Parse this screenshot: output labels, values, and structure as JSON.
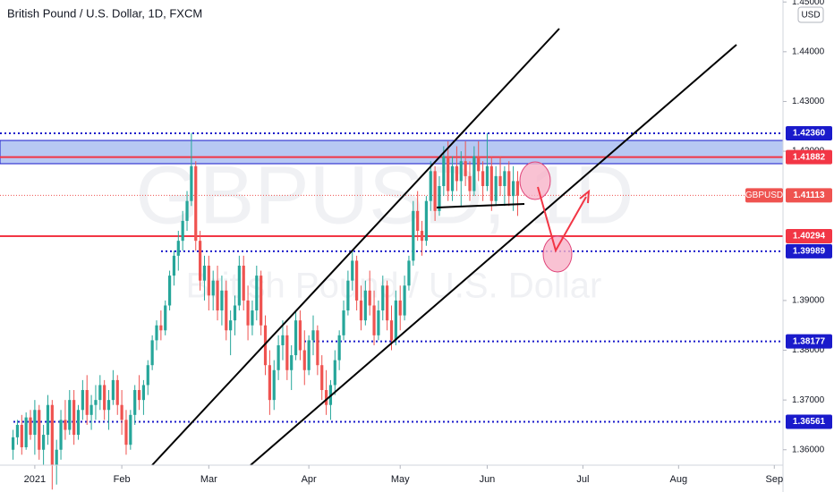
{
  "chart_data": {
    "type": "candlestick",
    "title": "British Pound / U.S. Dollar, 1D, FXCM",
    "watermark": "GBPUSD, 1D",
    "watermark_subtitle": "British Pound / U.S. Dollar",
    "currency": "USD",
    "symbol": "GBPUSD",
    "up_color": "#26a69a",
    "down_color": "#ef5350",
    "ylim": [
      1.3569,
      1.4504
    ],
    "yticks": [
      {
        "value": 1.36,
        "label": "1.36000"
      },
      {
        "value": 1.37,
        "label": "1.37000"
      },
      {
        "value": 1.38,
        "label": "1.38000"
      },
      {
        "value": 1.39,
        "label": "1.39000"
      },
      {
        "value": 1.42,
        "label": "1.42000"
      },
      {
        "value": 1.43,
        "label": "1.43000"
      },
      {
        "value": 1.44,
        "label": "1.44000"
      },
      {
        "value": 1.45,
        "label": "1.45000"
      }
    ],
    "xlim": [
      -3,
      177
    ],
    "xticks": [
      {
        "value": 5,
        "label": "2021"
      },
      {
        "value": 25,
        "label": "Feb"
      },
      {
        "value": 45,
        "label": "Mar"
      },
      {
        "value": 68,
        "label": "Apr"
      },
      {
        "value": 89,
        "label": "May"
      },
      {
        "value": 109,
        "label": "Jun"
      },
      {
        "value": 131,
        "label": "Jul"
      },
      {
        "value": 153,
        "label": "Aug"
      },
      {
        "value": 175,
        "label": "Sep"
      }
    ],
    "levels": [
      {
        "value": 1.4236,
        "label": "1.42360",
        "color": "#1a1acb",
        "style": "dotted"
      },
      {
        "value": 1.41882,
        "label": "1.41882",
        "color": "#f23645",
        "style": "solid"
      },
      {
        "value": 1.41113,
        "label": "1.41113",
        "color": "#ef5350",
        "style": "price"
      },
      {
        "value": 1.40294,
        "label": "1.40294",
        "color": "#f23645",
        "style": "solid"
      },
      {
        "value": 1.39989,
        "label": "1.39989",
        "color": "#1a1acb",
        "style": "dotted"
      },
      {
        "value": 1.38177,
        "label": "1.38177",
        "color": "#1a1acb",
        "style": "dotted"
      },
      {
        "value": 1.36561,
        "label": "1.36561",
        "color": "#1a1acb",
        "style": "dotted"
      }
    ],
    "x": [
      0,
      1,
      2,
      3,
      4,
      5,
      6,
      7,
      8,
      9,
      10,
      11,
      12,
      13,
      14,
      15,
      16,
      17,
      18,
      19,
      20,
      21,
      22,
      23,
      24,
      25,
      26,
      27,
      28,
      29,
      30,
      31,
      32,
      33,
      34,
      35,
      36,
      37,
      38,
      39,
      40,
      41,
      42,
      43,
      44,
      45,
      46,
      47,
      48,
      49,
      50,
      51,
      52,
      53,
      54,
      55,
      56,
      57,
      58,
      59,
      60,
      61,
      62,
      63,
      64,
      65,
      66,
      67,
      68,
      69,
      70,
      71,
      72,
      73,
      74,
      75,
      76,
      77,
      78,
      79,
      80,
      81,
      82,
      83,
      84,
      85,
      86,
      87,
      88,
      89,
      90,
      91,
      92,
      93,
      94,
      95,
      96,
      97,
      98,
      99,
      100,
      101,
      102,
      103,
      104,
      105,
      106,
      107,
      108,
      109,
      110,
      111,
      112,
      113,
      114,
      115,
      116
    ],
    "ohlc": [
      [
        1.36,
        1.364,
        1.358,
        1.3625
      ],
      [
        1.3625,
        1.366,
        1.361,
        1.365
      ],
      [
        1.365,
        1.367,
        1.359,
        1.3605
      ],
      [
        1.3605,
        1.3675,
        1.36,
        1.3665
      ],
      [
        1.3665,
        1.368,
        1.362,
        1.363
      ],
      [
        1.363,
        1.37,
        1.359,
        1.368
      ],
      [
        1.368,
        1.369,
        1.358,
        1.36
      ],
      [
        1.36,
        1.365,
        1.357,
        1.363
      ],
      [
        1.363,
        1.371,
        1.361,
        1.369
      ],
      [
        1.369,
        1.37,
        1.352,
        1.357
      ],
      [
        1.357,
        1.362,
        1.353,
        1.36
      ],
      [
        1.36,
        1.368,
        1.358,
        1.366
      ],
      [
        1.366,
        1.37,
        1.362,
        1.364
      ],
      [
        1.364,
        1.372,
        1.363,
        1.37
      ],
      [
        1.37,
        1.372,
        1.361,
        1.363
      ],
      [
        1.363,
        1.369,
        1.362,
        1.368
      ],
      [
        1.368,
        1.374,
        1.366,
        1.372
      ],
      [
        1.372,
        1.375,
        1.365,
        1.367
      ],
      [
        1.367,
        1.371,
        1.364,
        1.369
      ],
      [
        1.369,
        1.373,
        1.366,
        1.37
      ],
      [
        1.37,
        1.375,
        1.368,
        1.373
      ],
      [
        1.373,
        1.374,
        1.366,
        1.368
      ],
      [
        1.368,
        1.372,
        1.364,
        1.37
      ],
      [
        1.37,
        1.376,
        1.369,
        1.374
      ],
      [
        1.374,
        1.375,
        1.367,
        1.369
      ],
      [
        1.369,
        1.372,
        1.363,
        1.366
      ],
      [
        1.366,
        1.368,
        1.359,
        1.361
      ],
      [
        1.361,
        1.368,
        1.36,
        1.367
      ],
      [
        1.367,
        1.373,
        1.365,
        1.372
      ],
      [
        1.372,
        1.375,
        1.368,
        1.37
      ],
      [
        1.37,
        1.374,
        1.367,
        1.373
      ],
      [
        1.373,
        1.378,
        1.371,
        1.377
      ],
      [
        1.377,
        1.383,
        1.376,
        1.382
      ],
      [
        1.382,
        1.386,
        1.38,
        1.385
      ],
      [
        1.385,
        1.388,
        1.382,
        1.384
      ],
      [
        1.384,
        1.39,
        1.383,
        1.389
      ],
      [
        1.389,
        1.396,
        1.388,
        1.395
      ],
      [
        1.395,
        1.4,
        1.393,
        1.399
      ],
      [
        1.399,
        1.404,
        1.396,
        1.402
      ],
      [
        1.402,
        1.408,
        1.4,
        1.406
      ],
      [
        1.406,
        1.412,
        1.404,
        1.41
      ],
      [
        1.41,
        1.4237,
        1.409,
        1.417
      ],
      [
        1.417,
        1.418,
        1.4,
        1.402
      ],
      [
        1.402,
        1.404,
        1.392,
        1.394
      ],
      [
        1.394,
        1.399,
        1.39,
        1.397
      ],
      [
        1.397,
        1.399,
        1.388,
        1.391
      ],
      [
        1.391,
        1.396,
        1.388,
        1.394
      ],
      [
        1.394,
        1.397,
        1.386,
        1.388
      ],
      [
        1.388,
        1.395,
        1.385,
        1.392
      ],
      [
        1.392,
        1.394,
        1.382,
        1.384
      ],
      [
        1.384,
        1.388,
        1.379,
        1.386
      ],
      [
        1.386,
        1.391,
        1.383,
        1.389
      ],
      [
        1.389,
        1.399,
        1.388,
        1.397
      ],
      [
        1.397,
        1.399,
        1.388,
        1.39
      ],
      [
        1.39,
        1.393,
        1.382,
        1.385
      ],
      [
        1.385,
        1.39,
        1.383,
        1.388
      ],
      [
        1.388,
        1.397,
        1.386,
        1.395
      ],
      [
        1.395,
        1.396,
        1.383,
        1.385
      ],
      [
        1.385,
        1.387,
        1.375,
        1.377
      ],
      [
        1.377,
        1.38,
        1.367,
        1.37
      ],
      [
        1.37,
        1.378,
        1.368,
        1.376
      ],
      [
        1.376,
        1.383,
        1.374,
        1.381
      ],
      [
        1.381,
        1.386,
        1.378,
        1.383
      ],
      [
        1.383,
        1.385,
        1.374,
        1.376
      ],
      [
        1.376,
        1.381,
        1.372,
        1.379
      ],
      [
        1.379,
        1.388,
        1.378,
        1.386
      ],
      [
        1.386,
        1.388,
        1.378,
        1.38
      ],
      [
        1.38,
        1.384,
        1.373,
        1.376
      ],
      [
        1.376,
        1.383,
        1.375,
        1.382
      ],
      [
        1.382,
        1.387,
        1.379,
        1.384
      ],
      [
        1.384,
        1.385,
        1.375,
        1.377
      ],
      [
        1.377,
        1.379,
        1.37,
        1.372
      ],
      [
        1.372,
        1.376,
        1.367,
        1.369
      ],
      [
        1.369,
        1.374,
        1.366,
        1.373
      ],
      [
        1.373,
        1.38,
        1.371,
        1.378
      ],
      [
        1.378,
        1.384,
        1.376,
        1.383
      ],
      [
        1.383,
        1.39,
        1.382,
        1.388
      ],
      [
        1.388,
        1.396,
        1.387,
        1.394
      ],
      [
        1.394,
        1.4,
        1.392,
        1.398
      ],
      [
        1.398,
        1.399,
        1.388,
        1.39
      ],
      [
        1.39,
        1.393,
        1.384,
        1.386
      ],
      [
        1.386,
        1.394,
        1.385,
        1.392
      ],
      [
        1.392,
        1.396,
        1.387,
        1.389
      ],
      [
        1.389,
        1.392,
        1.381,
        1.383
      ],
      [
        1.383,
        1.39,
        1.382,
        1.388
      ],
      [
        1.388,
        1.395,
        1.386,
        1.393
      ],
      [
        1.393,
        1.394,
        1.384,
        1.386
      ],
      [
        1.386,
        1.389,
        1.38,
        1.382
      ],
      [
        1.382,
        1.392,
        1.381,
        1.39
      ],
      [
        1.39,
        1.393,
        1.384,
        1.387
      ],
      [
        1.387,
        1.395,
        1.386,
        1.393
      ],
      [
        1.393,
        1.399,
        1.392,
        1.398
      ],
      [
        1.398,
        1.41,
        1.397,
        1.408
      ],
      [
        1.408,
        1.412,
        1.402,
        1.404
      ],
      [
        1.404,
        1.406,
        1.399,
        1.402
      ],
      [
        1.402,
        1.411,
        1.401,
        1.41
      ],
      [
        1.41,
        1.418,
        1.408,
        1.416
      ],
      [
        1.416,
        1.417,
        1.406,
        1.408
      ],
      [
        1.408,
        1.415,
        1.407,
        1.413
      ],
      [
        1.413,
        1.421,
        1.411,
        1.419
      ],
      [
        1.419,
        1.422,
        1.41,
        1.412
      ],
      [
        1.412,
        1.419,
        1.41,
        1.417
      ],
      [
        1.417,
        1.421,
        1.412,
        1.414
      ],
      [
        1.414,
        1.42,
        1.409,
        1.418
      ],
      [
        1.418,
        1.422,
        1.413,
        1.415
      ],
      [
        1.415,
        1.418,
        1.41,
        1.412
      ],
      [
        1.412,
        1.421,
        1.411,
        1.419
      ],
      [
        1.419,
        1.422,
        1.414,
        1.416
      ],
      [
        1.416,
        1.418,
        1.41,
        1.413
      ],
      [
        1.413,
        1.4236,
        1.412,
        1.417
      ],
      [
        1.417,
        1.419,
        1.408,
        1.41
      ],
      [
        1.41,
        1.417,
        1.409,
        1.415
      ],
      [
        1.415,
        1.419,
        1.411,
        1.413
      ],
      [
        1.413,
        1.417,
        1.409,
        1.416
      ],
      [
        1.416,
        1.418,
        1.409,
        1.411
      ],
      [
        1.411,
        1.417,
        1.408,
        1.414
      ],
      [
        1.414,
        1.416,
        1.407,
        1.4111
      ]
    ]
  }
}
